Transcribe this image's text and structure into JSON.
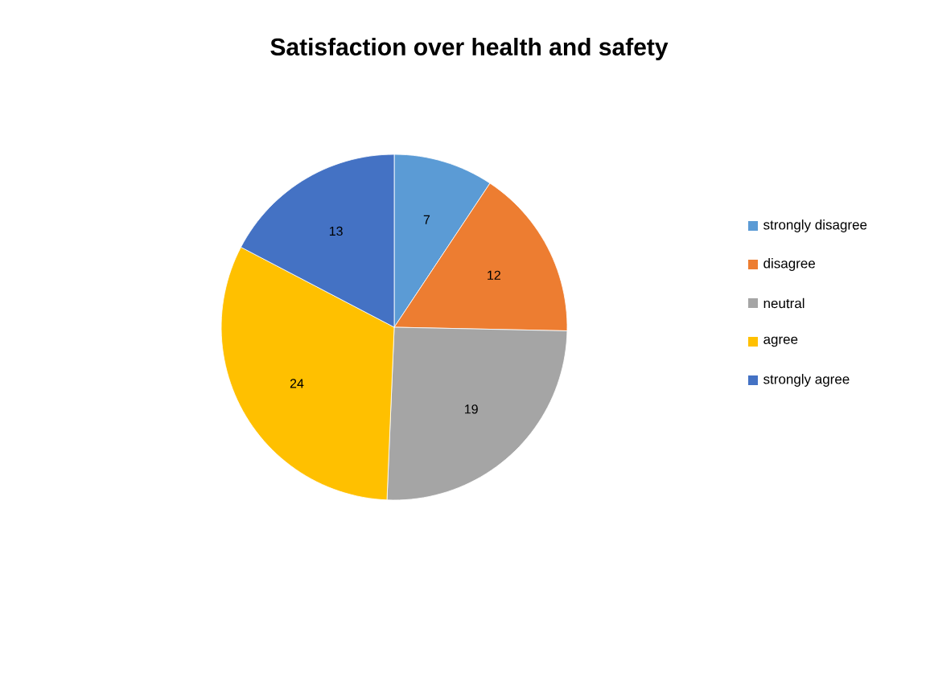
{
  "chart_data": {
    "type": "pie",
    "title": "Satisfaction over health and safety",
    "categories": [
      "strongly disagree",
      "disagree",
      "neutral",
      "agree",
      "strongly agree"
    ],
    "values": [
      7,
      12,
      19,
      24,
      13
    ],
    "colors": [
      "#5b9bd5",
      "#ed7d31",
      "#a5a5a5",
      "#ffc000",
      "#4472c4"
    ],
    "data_labels": true,
    "legend": "right"
  }
}
